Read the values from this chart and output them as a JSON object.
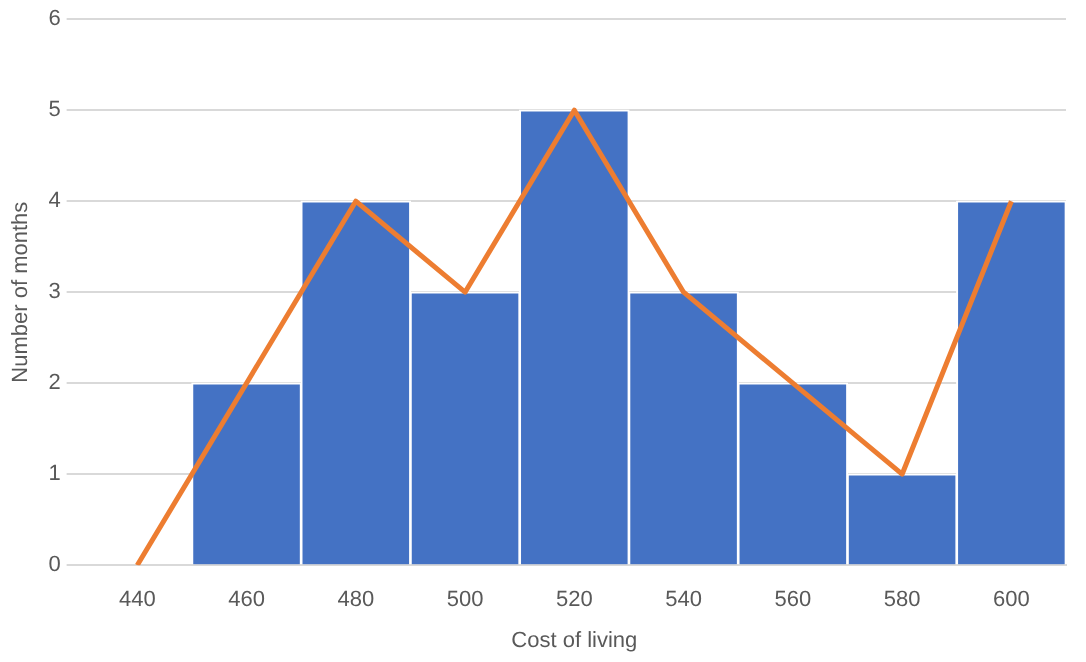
{
  "chart_data": {
    "type": "bar",
    "xlabel": "Cost of living",
    "ylabel": "Number of months",
    "categories": [
      "440",
      "460",
      "480",
      "500",
      "520",
      "540",
      "560",
      "580",
      "600"
    ],
    "series": [
      {
        "color": "#4472c4",
        "values": [
          0,
          2,
          4,
          3,
          5,
          3,
          2,
          1,
          4
        ]
      },
      {
        "type": "line",
        "color": "#ed7d31",
        "values": [
          0,
          2,
          4,
          3,
          5,
          3,
          2,
          1,
          4
        ]
      }
    ],
    "ylim": [
      0,
      6
    ],
    "yticks": [
      0,
      1,
      2,
      3,
      4,
      5,
      6
    ],
    "grid": "y",
    "legend": false,
    "marker": "none"
  }
}
